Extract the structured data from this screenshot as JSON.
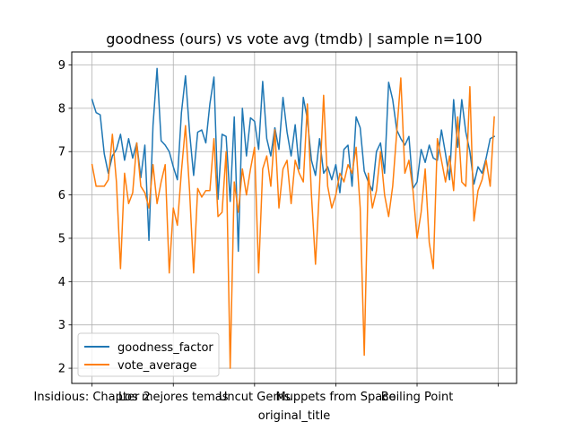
{
  "chart_data": {
    "type": "line",
    "title": "goodness (ours) vs vote avg (tmdb) | sample n=100",
    "xlabel": "original_title",
    "ylabel": "",
    "x_tick_labels": [
      {
        "index": 0,
        "label": "Insidious: Chapter 2"
      },
      {
        "index": 20,
        "label": "Los mejores temas"
      },
      {
        "index": 40,
        "label": "Uncut Gems"
      },
      {
        "index": 60,
        "label": "Muppets from Space"
      },
      {
        "index": 80,
        "label": "Boiling Point"
      },
      {
        "index": 100,
        "label": ""
      }
    ],
    "xlim": [
      -5,
      104.5
    ],
    "ylim": [
      1.65,
      9.3
    ],
    "y_ticks": [
      2,
      3,
      4,
      5,
      6,
      7,
      8,
      9
    ],
    "grid": true,
    "legend_position": "lower-left",
    "series": [
      {
        "name": "goodness_factor",
        "color": "#1f77b4",
        "values": [
          8.2,
          7.9,
          7.85,
          6.95,
          6.5,
          6.9,
          7.05,
          7.4,
          6.8,
          7.3,
          6.85,
          7.2,
          6.4,
          7.15,
          4.95,
          7.6,
          8.92,
          7.25,
          7.15,
          7.0,
          6.65,
          6.35,
          7.9,
          8.75,
          7.45,
          6.45,
          7.45,
          7.5,
          7.2,
          8.1,
          8.72,
          5.9,
          7.4,
          7.35,
          5.85,
          7.8,
          4.7,
          8.0,
          6.9,
          7.78,
          7.7,
          7.05,
          8.62,
          7.3,
          6.9,
          7.55,
          7.05,
          8.25,
          7.45,
          6.9,
          7.62,
          6.6,
          8.25,
          7.75,
          6.8,
          6.45,
          7.3,
          6.5,
          6.65,
          6.35,
          6.7,
          6.05,
          7.05,
          7.15,
          6.2,
          7.8,
          7.55,
          6.55,
          6.3,
          6.1,
          7.0,
          7.2,
          6.5,
          8.6,
          8.2,
          7.5,
          7.3,
          7.15,
          7.35,
          6.15,
          6.3,
          7.05,
          6.75,
          7.15,
          6.85,
          6.8,
          7.5,
          6.95,
          6.35,
          8.2,
          7.1,
          8.2,
          7.45,
          7.0,
          6.25,
          6.65,
          6.5,
          6.85,
          7.3,
          7.35
        ]
      },
      {
        "name": "vote_average",
        "color": "#ff7f0e",
        "values": [
          6.7,
          6.2,
          6.2,
          6.2,
          6.35,
          7.4,
          6.3,
          4.3,
          6.5,
          5.8,
          6.05,
          7.2,
          6.2,
          6.05,
          5.7,
          6.7,
          5.8,
          6.3,
          6.7,
          4.2,
          5.7,
          5.3,
          6.55,
          7.6,
          6.1,
          4.2,
          6.15,
          5.95,
          6.1,
          6.1,
          7.3,
          5.5,
          5.6,
          7.0,
          2.0,
          6.3,
          5.6,
          6.6,
          6.0,
          6.6,
          7.1,
          4.2,
          6.6,
          6.9,
          6.2,
          7.5,
          5.7,
          6.6,
          6.8,
          5.8,
          6.8,
          6.5,
          6.3,
          8.1,
          6.0,
          4.4,
          6.2,
          8.3,
          6.2,
          5.7,
          6.0,
          6.5,
          6.3,
          6.7,
          6.5,
          7.1,
          5.7,
          2.3,
          6.5,
          5.7,
          6.1,
          7.0,
          6.0,
          5.5,
          6.2,
          7.45,
          8.7,
          6.5,
          6.8,
          6.1,
          5.0,
          5.6,
          6.6,
          4.9,
          4.3,
          7.3,
          6.8,
          6.3,
          6.9,
          6.1,
          7.8,
          6.3,
          6.2,
          8.5,
          5.4,
          6.1,
          6.35,
          6.8,
          6.2,
          7.8
        ]
      }
    ]
  }
}
